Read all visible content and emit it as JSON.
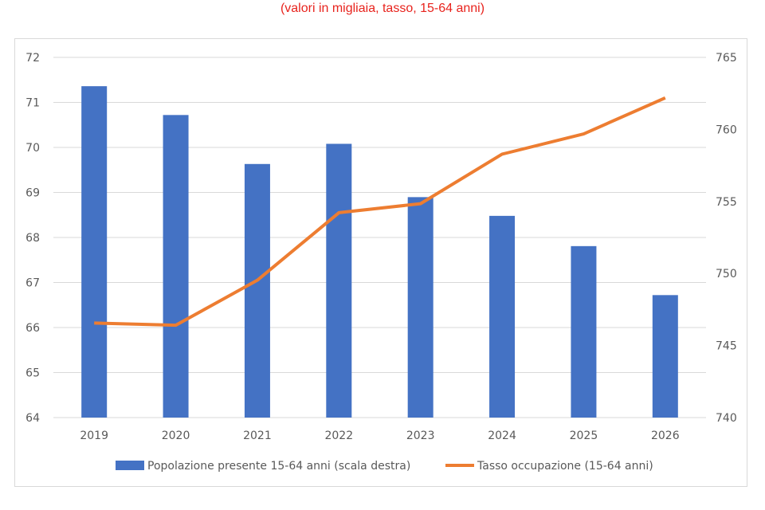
{
  "subtitle": "(valori in migliaia, tasso, 15-64 anni)",
  "colors": {
    "bars": "#4472c4",
    "line": "#ed7d31",
    "grid": "#d9d9d9",
    "subtitle": "#e8231d"
  },
  "chart_data": {
    "type": "bar",
    "categories": [
      "2019",
      "2020",
      "2021",
      "2022",
      "2023",
      "2024",
      "2025",
      "2026"
    ],
    "series": [
      {
        "name": "Popolazione presente 15-64 anni (scala destra)",
        "type": "bar",
        "axis": "right",
        "values": [
          763.0,
          761.0,
          757.6,
          759.0,
          755.3,
          754.0,
          751.9,
          748.5
        ]
      },
      {
        "name": "Tasso occupazione (15-64 anni)",
        "type": "line",
        "axis": "left",
        "values": [
          66.1,
          66.05,
          67.05,
          68.55,
          68.75,
          69.85,
          70.3,
          71.1
        ]
      }
    ],
    "y_left": {
      "lim": [
        64,
        72
      ],
      "ticks": [
        "72",
        "71",
        "70",
        "69",
        "68",
        "67",
        "66",
        "65",
        "64"
      ]
    },
    "y_right": {
      "lim": [
        740,
        765
      ],
      "ticks": [
        "765",
        "760",
        "755",
        "750",
        "745",
        "740"
      ]
    },
    "grid": true,
    "legend_position": "bottom"
  }
}
